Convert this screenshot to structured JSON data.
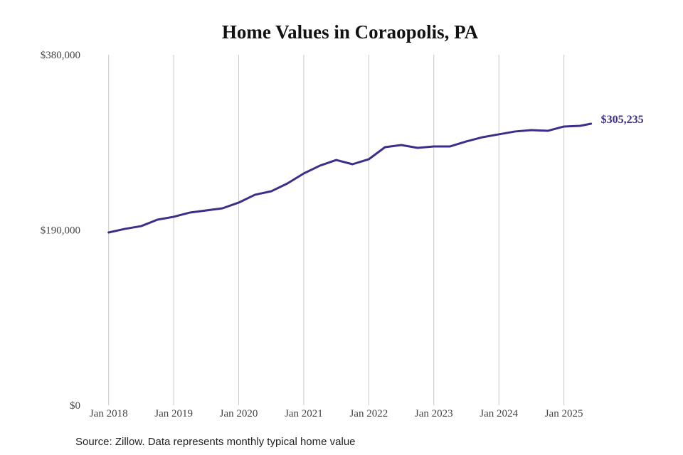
{
  "chart_data": {
    "type": "line",
    "title": "Home Values in Coraopolis, PA",
    "source": "Source: Zillow. Data represents monthly typical home value",
    "x": [
      2018,
      2018.25,
      2018.5,
      2018.75,
      2019,
      2019.25,
      2019.5,
      2019.75,
      2020,
      2020.25,
      2020.5,
      2020.75,
      2021,
      2021.25,
      2021.5,
      2021.75,
      2022,
      2022.25,
      2022.5,
      2022.75,
      2023,
      2023.25,
      2023.5,
      2023.75,
      2024,
      2024.25,
      2024.5,
      2024.75,
      2025,
      2025.25,
      2025.4167
    ],
    "series": [
      {
        "name": "Typical home value",
        "color": "#3b2f8a",
        "values": [
          187300,
          191200,
          194200,
          201200,
          204300,
          208900,
          211200,
          213500,
          219700,
          228200,
          232000,
          240500,
          251300,
          259800,
          265900,
          261300,
          266700,
          279800,
          282100,
          279000,
          280600,
          280600,
          286000,
          290600,
          293700,
          296800,
          298300,
          297500,
          302200,
          302900,
          305235
        ],
        "value_labels": [
          null,
          null,
          null,
          null,
          null,
          null,
          null,
          null,
          null,
          null,
          null,
          null,
          null,
          null,
          null,
          null,
          null,
          null,
          null,
          null,
          null,
          null,
          null,
          null,
          null,
          null,
          null,
          null,
          null,
          null,
          "$305,235"
        ]
      }
    ],
    "xlim": [
      2017.5,
      2026
    ],
    "xticks": [
      {
        "value": 2018,
        "label": "Jan 2018"
      },
      {
        "value": 2019,
        "label": "Jan 2019"
      },
      {
        "value": 2020,
        "label": "Jan 2020"
      },
      {
        "value": 2021,
        "label": "Jan 2021"
      },
      {
        "value": 2022,
        "label": "Jan 2022"
      },
      {
        "value": 2023,
        "label": "Jan 2023"
      },
      {
        "value": 2024,
        "label": "Jan 2024"
      },
      {
        "value": 2025,
        "label": "Jan 2025"
      }
    ],
    "ylim": [
      0,
      380000
    ],
    "yticks": [
      {
        "value": 0,
        "label": "$0"
      },
      {
        "value": 190000,
        "label": "$190,000"
      },
      {
        "value": 380000,
        "label": "$380,000"
      }
    ],
    "grid": "x"
  }
}
